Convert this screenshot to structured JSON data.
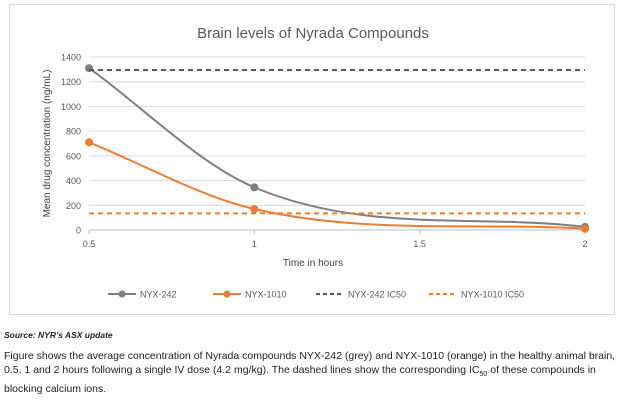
{
  "chart_data": {
    "type": "line",
    "title": "Brain levels of Nyrada Compounds",
    "xlabel": "Time in hours",
    "ylabel": "Mean drug concentration (ng/mL)",
    "xlim": [
      0.5,
      2
    ],
    "ylim": [
      0,
      1400
    ],
    "x_ticks": [
      0.5,
      1,
      1.5,
      2
    ],
    "x_tick_labels": [
      "0.5",
      "1",
      "1.5",
      "2"
    ],
    "y_ticks": [
      0,
      200,
      400,
      600,
      800,
      1000,
      1200,
      1400
    ],
    "y_tick_labels": [
      "0",
      "200",
      "400",
      "600",
      "800",
      "1000",
      "1200",
      "1400"
    ],
    "grid": "horizontal",
    "legend_position": "bottom",
    "series": [
      {
        "name": "NYX-242",
        "style": "solid-marker",
        "color": "#7f7f7f",
        "x": [
          0.5,
          1,
          2
        ],
        "y": [
          1310,
          345,
          25
        ]
      },
      {
        "name": "NYX-1010",
        "style": "solid-marker",
        "color": "#ed7d31",
        "x": [
          0.5,
          1,
          2
        ],
        "y": [
          710,
          170,
          10
        ]
      },
      {
        "name": "NYX-242 IC50",
        "style": "dashed",
        "color": "#595959",
        "x": [
          0.5,
          2
        ],
        "y": [
          1295,
          1295
        ]
      },
      {
        "name": "NYX-1010 IC50",
        "style": "dashed",
        "color": "#ed7d31",
        "x": [
          0.5,
          2
        ],
        "y": [
          135,
          135
        ]
      }
    ]
  },
  "source_text": "Source: NYR’s ASX update",
  "caption": {
    "before": "Figure shows the average concentration of Nyrada compounds NYX-242 (grey) and NYX-1010 (orange) in the healthy animal brain, 0.5, 1 and 2 hours following a single IV dose (4.2 mg/kg). The dashed lines show the corresponding IC",
    "sub": "50",
    "after": " of these compounds in blocking calcium ions."
  }
}
